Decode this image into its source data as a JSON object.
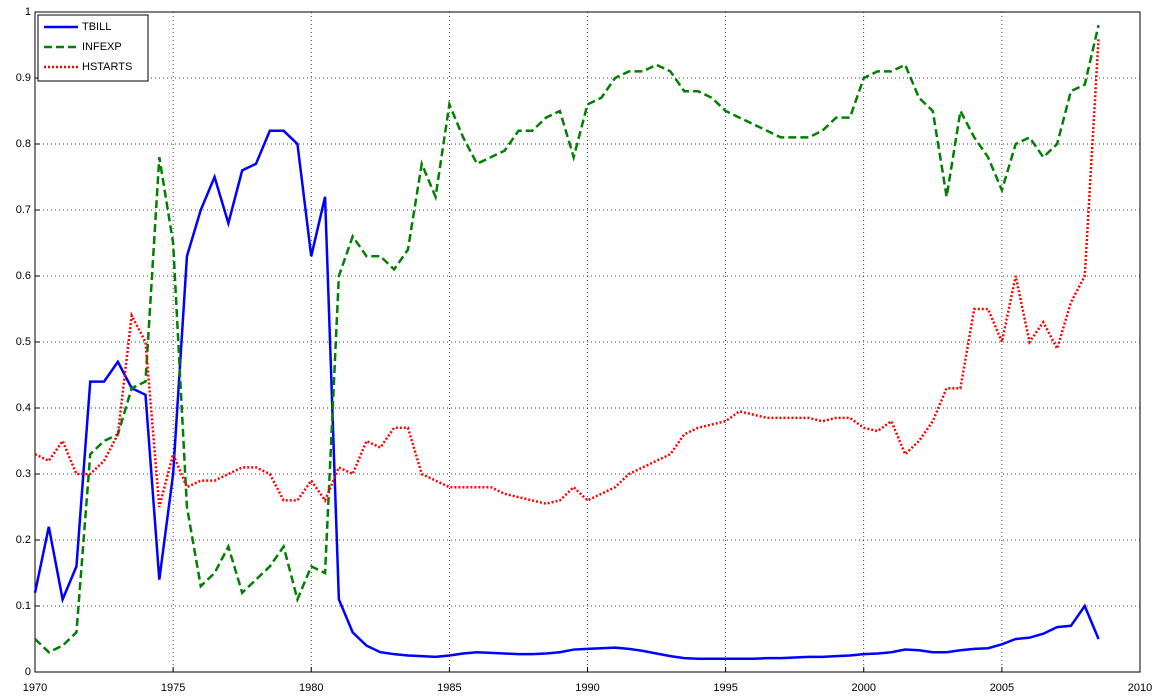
{
  "chart_data": {
    "type": "line",
    "x": [
      1970,
      1970.5,
      1971,
      1971.5,
      1972,
      1972.5,
      1973,
      1973.5,
      1974,
      1974.5,
      1975,
      1975.5,
      1976,
      1976.5,
      1977,
      1977.5,
      1978,
      1978.5,
      1979,
      1979.5,
      1980,
      1980.5,
      1981,
      1981.5,
      1982,
      1982.5,
      1983,
      1983.5,
      1984,
      1984.5,
      1985,
      1985.5,
      1986,
      1986.5,
      1987,
      1987.5,
      1988,
      1988.5,
      1989,
      1989.5,
      1990,
      1990.5,
      1991,
      1991.5,
      1992,
      1992.5,
      1993,
      1993.5,
      1994,
      1994.5,
      1995,
      1995.5,
      1996,
      1996.5,
      1997,
      1997.5,
      1998,
      1998.5,
      1999,
      1999.5,
      2000,
      2000.5,
      2001,
      2001.5,
      2002,
      2002.5,
      2003,
      2003.5,
      2004,
      2004.5,
      2005,
      2005.5,
      2006,
      2006.5,
      2007,
      2007.5,
      2008,
      2008.5
    ],
    "series": [
      {
        "name": "TBILL",
        "color": "#0000ff",
        "dash": "solid",
        "values": [
          0.12,
          0.22,
          0.11,
          0.16,
          0.44,
          0.44,
          0.47,
          0.43,
          0.42,
          0.14,
          0.3,
          0.63,
          0.7,
          0.75,
          0.68,
          0.76,
          0.77,
          0.82,
          0.82,
          0.8,
          0.63,
          0.72,
          0.11,
          0.06,
          0.04,
          0.03,
          0.027,
          0.025,
          0.024,
          0.023,
          0.025,
          0.028,
          0.03,
          0.029,
          0.028,
          0.027,
          0.027,
          0.028,
          0.03,
          0.034,
          0.035,
          0.036,
          0.037,
          0.035,
          0.032,
          0.028,
          0.024,
          0.021,
          0.02,
          0.02,
          0.02,
          0.02,
          0.02,
          0.021,
          0.021,
          0.022,
          0.023,
          0.023,
          0.024,
          0.025,
          0.027,
          0.028,
          0.03,
          0.034,
          0.033,
          0.03,
          0.03,
          0.033,
          0.035,
          0.036,
          0.042,
          0.05,
          0.052,
          0.058,
          0.068,
          0.07,
          0.1,
          0.05
        ]
      },
      {
        "name": "INFEXP",
        "color": "#007f00",
        "dash": "dashed",
        "values": [
          0.05,
          0.03,
          0.04,
          0.06,
          0.33,
          0.35,
          0.36,
          0.43,
          0.44,
          0.78,
          0.65,
          0.25,
          0.13,
          0.15,
          0.19,
          0.12,
          0.14,
          0.16,
          0.19,
          0.11,
          0.16,
          0.15,
          0.6,
          0.66,
          0.63,
          0.63,
          0.61,
          0.64,
          0.77,
          0.72,
          0.86,
          0.81,
          0.77,
          0.78,
          0.79,
          0.82,
          0.82,
          0.84,
          0.85,
          0.78,
          0.86,
          0.87,
          0.9,
          0.91,
          0.91,
          0.92,
          0.91,
          0.88,
          0.88,
          0.87,
          0.85,
          0.84,
          0.83,
          0.82,
          0.81,
          0.81,
          0.81,
          0.82,
          0.84,
          0.84,
          0.9,
          0.91,
          0.91,
          0.92,
          0.87,
          0.85,
          0.72,
          0.85,
          0.81,
          0.78,
          0.73,
          0.8,
          0.81,
          0.78,
          0.8,
          0.88,
          0.89,
          0.98
        ]
      },
      {
        "name": "HSTARTS",
        "color": "#ff0000",
        "dash": "dotted",
        "values": [
          0.33,
          0.32,
          0.35,
          0.3,
          0.3,
          0.32,
          0.36,
          0.54,
          0.5,
          0.25,
          0.33,
          0.28,
          0.29,
          0.29,
          0.3,
          0.31,
          0.31,
          0.3,
          0.26,
          0.26,
          0.29,
          0.26,
          0.31,
          0.3,
          0.35,
          0.34,
          0.37,
          0.37,
          0.3,
          0.29,
          0.28,
          0.28,
          0.28,
          0.28,
          0.27,
          0.265,
          0.26,
          0.255,
          0.26,
          0.28,
          0.26,
          0.27,
          0.28,
          0.3,
          0.31,
          0.32,
          0.33,
          0.36,
          0.37,
          0.375,
          0.38,
          0.395,
          0.39,
          0.385,
          0.385,
          0.385,
          0.385,
          0.38,
          0.385,
          0.385,
          0.37,
          0.365,
          0.38,
          0.33,
          0.35,
          0.38,
          0.43,
          0.43,
          0.55,
          0.55,
          0.5,
          0.6,
          0.5,
          0.53,
          0.49,
          0.56,
          0.6,
          0.96
        ]
      }
    ],
    "xlim": [
      1970,
      2010
    ],
    "xticks": [
      1970,
      1975,
      1980,
      1985,
      1990,
      1995,
      2000,
      2005,
      2010
    ],
    "ylim": [
      0,
      1
    ],
    "yticks": [
      0,
      0.1,
      0.2,
      0.3,
      0.4,
      0.5,
      0.6,
      0.7,
      0.8,
      0.9,
      1
    ],
    "grid": true,
    "legend": "top-left"
  }
}
